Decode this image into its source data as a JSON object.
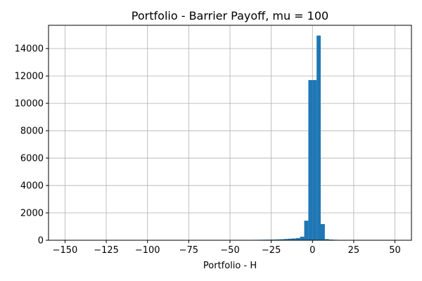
{
  "chart_data": {
    "type": "bar",
    "title": "Portfolio - Barrier Payoff, mu = 100",
    "xlabel": "Portfolio - H",
    "ylabel": "",
    "xlim": [
      -160,
      60
    ],
    "ylim": [
      0,
      15700
    ],
    "xticks": [
      -150,
      -125,
      -100,
      -75,
      -50,
      -25,
      0,
      25,
      50
    ],
    "xtick_labels": [
      "−150",
      "−125",
      "−100",
      "−75",
      "−50",
      "−25",
      "0",
      "25",
      "50"
    ],
    "yticks": [
      0,
      2000,
      4000,
      6000,
      8000,
      10000,
      12000,
      14000
    ],
    "ytick_labels": [
      "0",
      "2000",
      "4000",
      "6000",
      "8000",
      "10000",
      "12000",
      "14000"
    ],
    "grid": true,
    "bar_color": "#1f77b4",
    "bins": [
      {
        "x0": -151.0,
        "x1": -148.5,
        "count": 2
      },
      {
        "x0": -50.0,
        "x1": -47.5,
        "count": 15
      },
      {
        "x0": -47.5,
        "x1": -45.0,
        "count": 18
      },
      {
        "x0": -45.0,
        "x1": -42.5,
        "count": 20
      },
      {
        "x0": -42.5,
        "x1": -40.0,
        "count": 22
      },
      {
        "x0": -40.0,
        "x1": -37.5,
        "count": 25
      },
      {
        "x0": -37.5,
        "x1": -35.0,
        "count": 28
      },
      {
        "x0": -35.0,
        "x1": -32.5,
        "count": 30
      },
      {
        "x0": -32.5,
        "x1": -30.0,
        "count": 35
      },
      {
        "x0": -30.0,
        "x1": -27.5,
        "count": 40
      },
      {
        "x0": -27.5,
        "x1": -25.0,
        "count": 45
      },
      {
        "x0": -25.0,
        "x1": -22.5,
        "count": 50
      },
      {
        "x0": -22.5,
        "x1": -20.0,
        "count": 60
      },
      {
        "x0": -20.0,
        "x1": -17.5,
        "count": 70
      },
      {
        "x0": -17.5,
        "x1": -15.0,
        "count": 90
      },
      {
        "x0": -15.0,
        "x1": -12.5,
        "count": 110
      },
      {
        "x0": -12.5,
        "x1": -10.0,
        "count": 130
      },
      {
        "x0": -10.0,
        "x1": -7.5,
        "count": 160
      },
      {
        "x0": -7.5,
        "x1": -5.0,
        "count": 260
      },
      {
        "x0": -5.0,
        "x1": -2.5,
        "count": 1430
      },
      {
        "x0": -2.5,
        "x1": 0.0,
        "count": 11700
      },
      {
        "x0": 0.0,
        "x1": 2.5,
        "count": 11700
      },
      {
        "x0": 2.5,
        "x1": 5.0,
        "count": 14950
      },
      {
        "x0": 5.0,
        "x1": 7.5,
        "count": 1180
      },
      {
        "x0": 7.5,
        "x1": 10.0,
        "count": 80
      },
      {
        "x0": 10.0,
        "x1": 12.5,
        "count": 50
      },
      {
        "x0": 12.5,
        "x1": 15.0,
        "count": 35
      },
      {
        "x0": 15.0,
        "x1": 17.5,
        "count": 25
      },
      {
        "x0": 17.5,
        "x1": 20.0,
        "count": 15
      },
      {
        "x0": 20.0,
        "x1": 22.5,
        "count": 8
      },
      {
        "x0": 47.5,
        "x1": 50.0,
        "count": 2
      }
    ]
  }
}
